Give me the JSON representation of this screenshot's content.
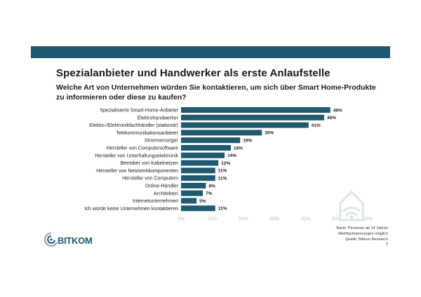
{
  "slide": {
    "title": "Spezialanbieter und Handwerker als erste Anlaufstelle",
    "question": "Welche Art von Unternehmen würden Sie kontaktieren, um sich über Smart Home-Produkte zu informieren oder diese zu kaufen?",
    "page_number": "7"
  },
  "footnote": {
    "base": "Basis: Personen ab 14 Jahren",
    "note": "Mehrfachnennungen möglich",
    "source": "Quelle: Bitkom Research"
  },
  "brand": {
    "logo_text": "BITKOM",
    "band_color": "#1f5a70",
    "bar_color": "#1f5a70",
    "logo_color": "#1f5a70"
  },
  "chart_data": {
    "type": "bar",
    "orientation": "horizontal",
    "categories": [
      "Spezialisierte Smart-Home-Anbieter",
      "Elektrohandwerker",
      "Elektro-/Elektronikfachhändler (stationär)",
      "Telekommunikationsanbieter",
      "Stromversorger",
      "Hersteller von Computersoftware",
      "Hersteller von Unterhaltungselektronik",
      "Betreiber von Kabelnetzen",
      "Hersteller von Netzwerkkomponenten",
      "Hersteller von Computern",
      "Online-Händler",
      "Architekten",
      "Internetunternehmen",
      "Ich würde keine Unternehmen kontaktieren"
    ],
    "values": [
      48,
      46,
      41,
      26,
      19,
      16,
      14,
      12,
      11,
      11,
      8,
      7,
      5,
      11
    ],
    "value_labels": [
      "48%",
      "46%",
      "41%",
      "26%",
      "19%",
      "16%",
      "14%",
      "12%",
      "11%",
      "11%",
      "8%",
      "7%",
      "5%",
      "11%"
    ],
    "xlim": [
      0,
      60
    ],
    "x_ticks": [
      "0%",
      "10%",
      "20%",
      "30%",
      "40%",
      "50%",
      "60%"
    ],
    "grid": false,
    "legend": "none"
  }
}
